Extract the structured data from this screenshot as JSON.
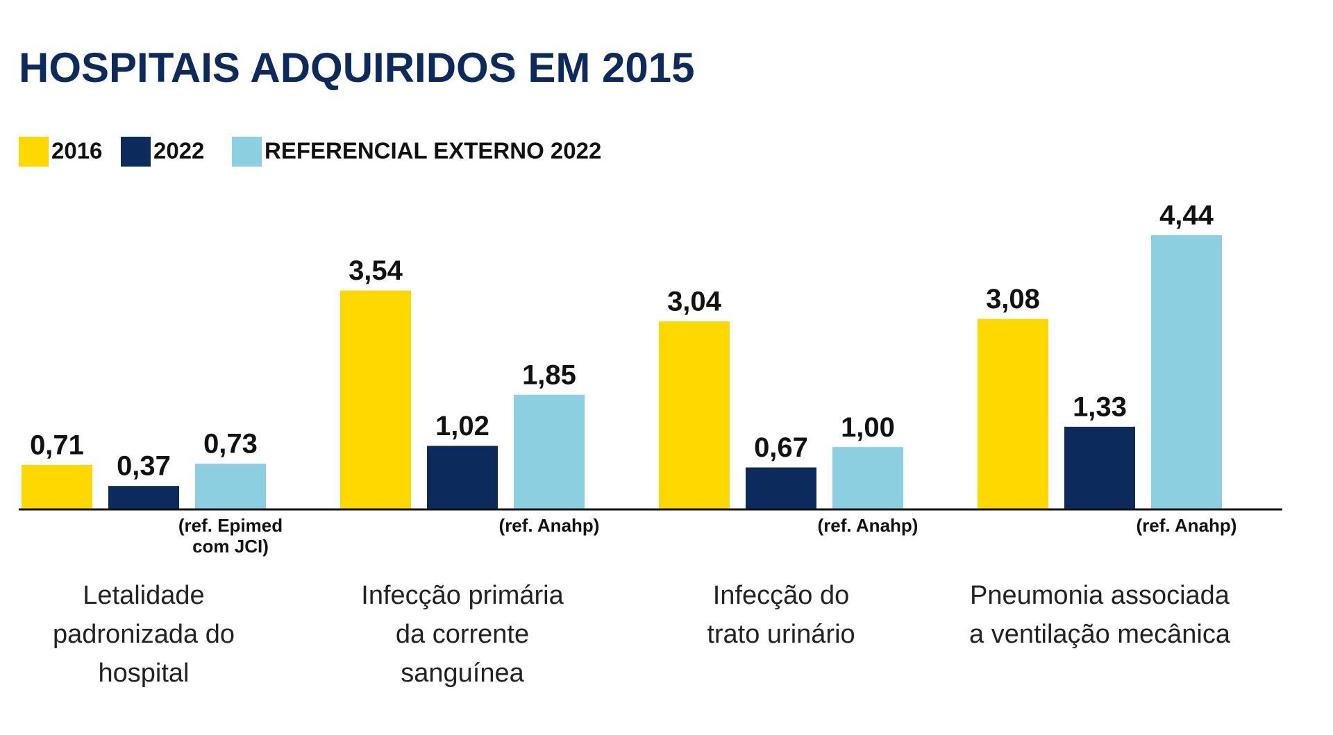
{
  "chart_data": {
    "type": "bar",
    "title": "HOSPITAIS ADQUIRIDOS EM 2015",
    "categories": [
      [
        "Letalidade",
        "padronizada do",
        "hospital"
      ],
      [
        "Infecção primária",
        "da corrente",
        "sanguínea"
      ],
      [
        "Infecção do",
        "trato urinário"
      ],
      [
        "Pneumonia associada",
        "a ventilação mecânica"
      ]
    ],
    "series": [
      {
        "name": "2016",
        "color": "#ffd800",
        "values": [
          0.71,
          3.54,
          3.04,
          3.08
        ],
        "value_labels": [
          "0,71",
          "3,54",
          "3,04",
          "3,08"
        ]
      },
      {
        "name": "2022",
        "color": "#0d2a5c",
        "values": [
          0.37,
          1.02,
          0.67,
          1.33
        ],
        "value_labels": [
          "0,37",
          "1,02",
          "0,67",
          "1,33"
        ]
      },
      {
        "name": "REFERENCIAL EXTERNO 2022",
        "color": "#8ccfe0",
        "values": [
          0.73,
          1.85,
          1.0,
          4.44
        ],
        "value_labels": [
          "0,73",
          "1,85",
          "1,00",
          "4,44"
        ]
      }
    ],
    "ref_notes": [
      [
        "(ref. Epimed",
        "com JCI)"
      ],
      [
        "(ref. Anahp)"
      ],
      [
        "(ref. Anahp)"
      ],
      [
        "(ref. Anahp)"
      ]
    ]
  }
}
